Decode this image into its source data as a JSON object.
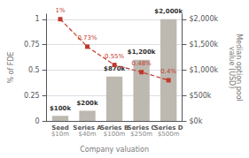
{
  "chart_data": {
    "type": "bar",
    "categories": [
      "Seed",
      "Series A",
      "Series B",
      "Series C",
      "Series D"
    ],
    "annotations": [
      {
        "x": "Seed",
        "text": "$10m"
      },
      {
        "x": "Series A",
        "text": "$40m"
      },
      {
        "x": "Series B",
        "text": "$100m"
      },
      {
        "x": "Series C",
        "text": "$250m"
      },
      {
        "x": "Series D",
        "text": "$500m"
      }
    ],
    "xlabel": "Company valuation",
    "ylabel": "% of FDE",
    "y2label": "Median option pool\nvalue (USD)",
    "series": [
      {
        "type": "bar",
        "axis": "y2",
        "color": "#bdb8b0",
        "values": [
          100,
          200,
          870,
          1200,
          2000
        ],
        "value_labels": [
          "$100k",
          "$200k",
          "$870k",
          "$1,200k",
          "$2,000k"
        ]
      },
      {
        "type": "line",
        "axis": "y",
        "color": "#c0392b",
        "marker": "square",
        "line_style": "dashed",
        "values": [
          1.0,
          0.73,
          0.55,
          0.48,
          0.4
        ],
        "value_labels": [
          "1%",
          "0.73%",
          "0.55%",
          "0.48%",
          "0.4%"
        ]
      }
    ],
    "ylim": [
      0,
      1.05
    ],
    "yticks": [
      0,
      0.25,
      0.5,
      0.75,
      1
    ],
    "y2lim": [
      0,
      2100
    ],
    "y2ticks": [
      {
        "value": 0,
        "label": "$0k"
      },
      {
        "value": 500,
        "label": "$500k"
      },
      {
        "value": 1000,
        "label": "$1,000k"
      },
      {
        "value": 1500,
        "label": "$1,500k"
      },
      {
        "value": 2000,
        "label": "$2,000k"
      }
    ],
    "grid": true,
    "data_labels": true
  }
}
